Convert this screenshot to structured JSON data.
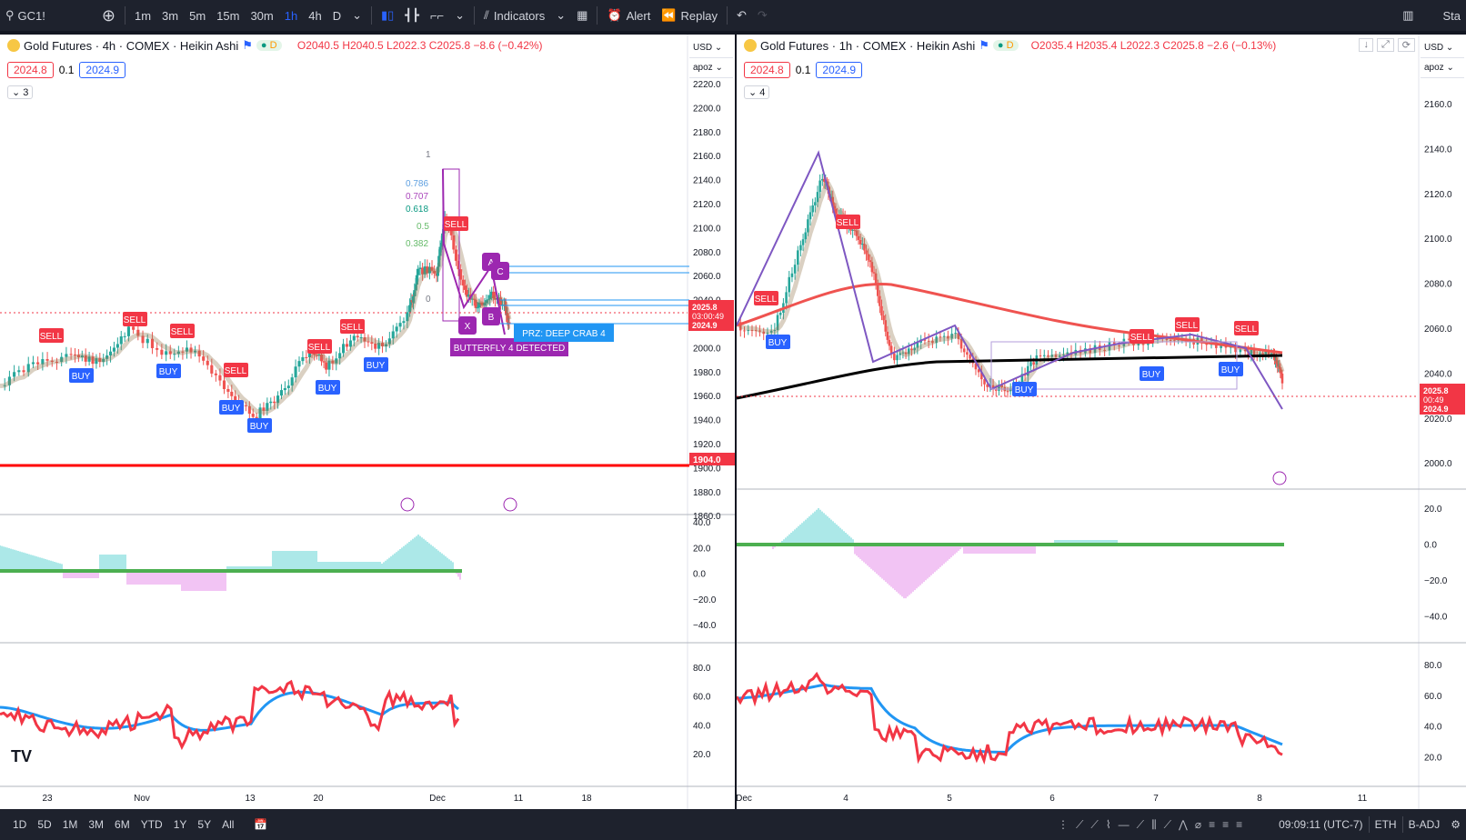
{
  "topbar": {
    "symbol": "GC1!",
    "intervals": [
      "1m",
      "3m",
      "5m",
      "15m",
      "30m",
      "1h",
      "4h",
      "D"
    ],
    "active_interval": "1h",
    "indicators_label": "Indicators",
    "alert_label": "Alert",
    "replay_label": "Replay",
    "right_label": "Sta"
  },
  "left": {
    "title": "Gold Futures · 4h · COMEX · Heikin Ashi",
    "badge": "D",
    "ohlc": {
      "o": "O2040.5",
      "h": "H2040.5",
      "l": "L2022.3",
      "c": "C2025.8",
      "chg": "−8.6 (−0.42%)"
    },
    "bid": "2024.8",
    "spread": "0.1",
    "ask": "2024.9",
    "collapse": "3",
    "currency": "USD",
    "unit": "apoz",
    "price_ticks": [
      "2220.0",
      "2200.0",
      "2180.0",
      "2160.0",
      "2140.0",
      "2120.0",
      "2100.0",
      "2080.0",
      "2060.0",
      "2040.0",
      "2020.0",
      "2000.0",
      "1980.0",
      "1960.0",
      "1940.0",
      "1920.0",
      "1900.0",
      "1880.0",
      "1860.0"
    ],
    "last_price": "2025.8",
    "countdown": "03:00:49",
    "last_price2": "2024.9",
    "hline_price": "1904.0",
    "osc_ticks": [
      "40.0",
      "20.0",
      "0.0",
      "−20.0",
      "−40.0"
    ],
    "rsi_ticks": [
      "80.0",
      "60.0",
      "40.0",
      "20.0"
    ],
    "time_ticks": [
      "23",
      "Nov",
      "13",
      "20",
      "Dec",
      "11",
      "18"
    ],
    "fib_labels": [
      "1",
      "0.786",
      "0.707",
      "0.618",
      "0.5",
      "0.382",
      "0"
    ],
    "pattern_labels": {
      "butterfly": "BUTTERFLY 4 DETECTED",
      "przcrab": "PRZ: DEEP CRAB 4",
      "x": "X",
      "a": "A",
      "b": "B",
      "c": "C"
    },
    "signals": {
      "sell": "SELL",
      "buy": "BUY"
    }
  },
  "right": {
    "title": "Gold Futures · 1h · COMEX · Heikin Ashi",
    "badge": "D",
    "ohlc": {
      "o": "O2035.4",
      "h": "H2035.4",
      "l": "L2022.3",
      "c": "C2025.8",
      "chg": "−2.6 (−0.13%)"
    },
    "bid": "2024.8",
    "spread": "0.1",
    "ask": "2024.9",
    "collapse": "4",
    "currency": "USD",
    "unit": "apoz",
    "price_ticks": [
      "2160.0",
      "2140.0",
      "2120.0",
      "2100.0",
      "2080.0",
      "2060.0",
      "2040.0",
      "2020.0",
      "2000.0"
    ],
    "last_price": "2025.8",
    "countdown": "00:49",
    "last_price2": "2024.9",
    "osc_ticks": [
      "20.0",
      "0.0",
      "−20.0",
      "−40.0"
    ],
    "rsi_ticks": [
      "80.0",
      "60.0",
      "40.0",
      "20.0"
    ],
    "time_ticks": [
      "Dec",
      "4",
      "5",
      "6",
      "7",
      "8",
      "11"
    ],
    "signals": {
      "sell": "SELL",
      "buy": "BUY"
    }
  },
  "bottombar": {
    "ranges": [
      "1D",
      "5D",
      "1M",
      "3M",
      "6M",
      "YTD",
      "1Y",
      "5Y",
      "All"
    ],
    "time": "09:09:11 (UTC-7)",
    "session": "ETH",
    "adj": "B-ADJ"
  },
  "colors": {
    "red": "#f23645",
    "blue": "#2962ff",
    "green": "#089981",
    "purple": "#9c27b0"
  }
}
